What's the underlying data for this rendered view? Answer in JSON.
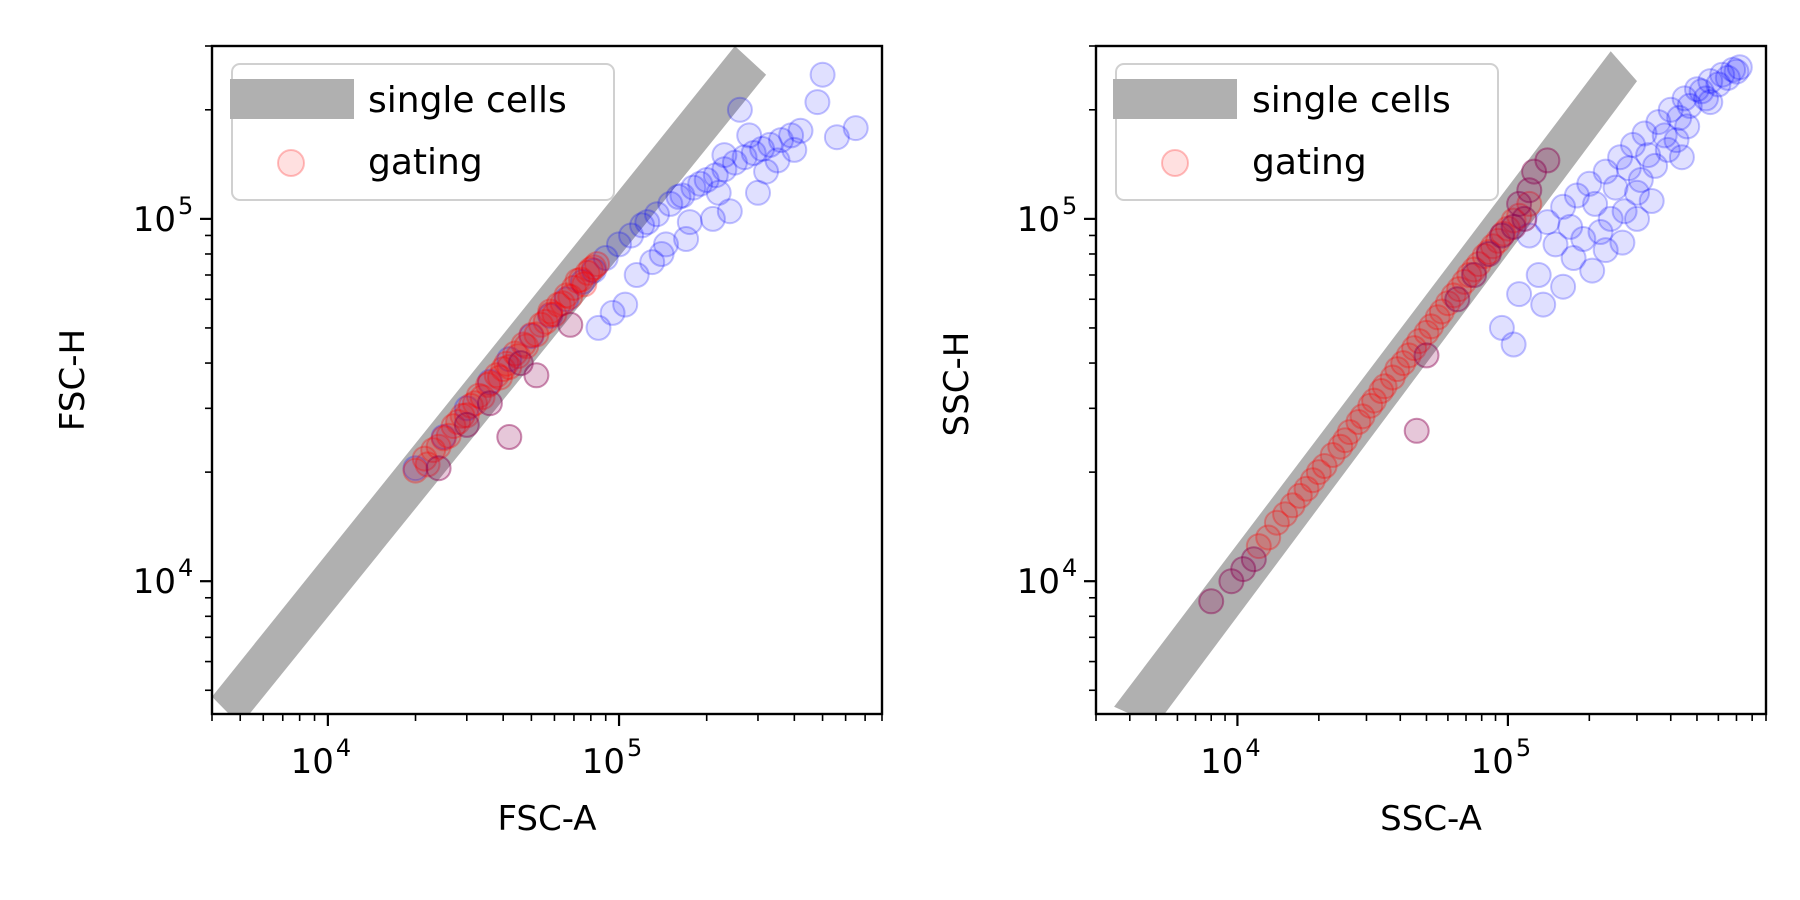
{
  "chart_data": [
    {
      "type": "scatter",
      "xlabel": "FSC-A",
      "ylabel": "FSC-H",
      "xscale": "log",
      "yscale": "log",
      "xlim": [
        4000,
        800000
      ],
      "ylim": [
        4300,
        300000
      ],
      "x_ticks": [
        {
          "base": "10",
          "exp": "4",
          "value": 10000
        },
        {
          "base": "10",
          "exp": "5",
          "value": 100000
        }
      ],
      "y_ticks": [
        {
          "base": "10",
          "exp": "4",
          "value": 10000
        },
        {
          "base": "10",
          "exp": "5",
          "value": 100000
        }
      ],
      "grid": false,
      "legend_position": "top-left",
      "legend": [
        {
          "label": "single cells",
          "marker": "band",
          "color": "#b0b0b0"
        },
        {
          "label": "gating",
          "marker": "circle",
          "color": "#ff0000"
        }
      ],
      "gate_band": {
        "name": "single cells",
        "lower": [
          [
            5000,
            4000
          ],
          [
            320000,
            250000
          ]
        ],
        "upper": [
          [
            4000,
            4800
          ],
          [
            250000,
            300000
          ]
        ],
        "color": "#b0b0b0"
      },
      "series": [
        {
          "name": "gating",
          "role": "all events",
          "color": "#0000ff",
          "alpha": 0.12,
          "x": [
            20000,
            25000,
            30000,
            36000,
            42000,
            50000,
            58000,
            66000,
            75000,
            82000,
            90000,
            100000,
            110000,
            120000,
            135000,
            150000,
            165000,
            180000,
            200000,
            215000,
            230000,
            250000,
            270000,
            290000,
            310000,
            330000,
            360000,
            390000,
            420000,
            500000,
            650000,
            560000,
            480000,
            140000,
            170000,
            210000,
            240000,
            300000,
            260000,
            115000,
            125000,
            160000,
            190000,
            280000,
            350000,
            220000,
            105000,
            95000,
            130000,
            320000,
            400000,
            230000,
            175000,
            145000,
            85000
          ],
          "y": [
            20500,
            25000,
            30000,
            35500,
            41000,
            47500,
            54000,
            60000,
            67000,
            72000,
            78000,
            85000,
            90000,
            96000,
            103000,
            110000,
            116000,
            122000,
            128000,
            132000,
            137000,
            143000,
            148000,
            152000,
            156000,
            160000,
            165000,
            170000,
            175000,
            250000,
            178000,
            168000,
            210000,
            80000,
            88000,
            100000,
            105000,
            118000,
            200000,
            70000,
            98000,
            115000,
            125000,
            170000,
            145000,
            118000,
            58000,
            55000,
            76000,
            135000,
            155000,
            150000,
            98000,
            85000,
            50000
          ]
        },
        {
          "name": "gating",
          "role": "gated single cells",
          "color": "#ff0000",
          "alpha": 0.15,
          "x": [
            20000,
            21500,
            23000,
            25000,
            27000,
            29000,
            31000,
            33000,
            35500,
            38000,
            41000,
            44000,
            47000,
            50000,
            54000,
            58000,
            62000,
            66000,
            70000,
            74000,
            78000,
            82000,
            84000,
            22000,
            26000,
            30000,
            34000,
            39000,
            45000,
            52000,
            60000,
            68000,
            76000,
            24000,
            42000,
            64000,
            36000,
            48000,
            56000,
            72000,
            32000,
            40000,
            80000,
            28000,
            58000
          ],
          "y": [
            20200,
            21800,
            23000,
            24800,
            26800,
            28600,
            30500,
            32500,
            34800,
            37000,
            39800,
            42500,
            45000,
            47800,
            51000,
            54500,
            58000,
            61500,
            64500,
            68000,
            71000,
            73500,
            75000,
            21000,
            25200,
            28700,
            32200,
            36500,
            41800,
            48000,
            54500,
            61000,
            66000,
            23500,
            39000,
            58500,
            35200,
            44500,
            52000,
            67500,
            31000,
            38500,
            72500,
            27500,
            55500
          ]
        },
        {
          "name": "gating",
          "role": "outliers",
          "color": "#8b0050",
          "alpha": 0.22,
          "x": [
            42000,
            52000,
            68000,
            24000,
            30000,
            36000,
            46000
          ],
          "y": [
            25000,
            37000,
            51000,
            20500,
            27000,
            31000,
            40000
          ]
        }
      ]
    },
    {
      "type": "scatter",
      "xlabel": "SSC-A",
      "ylabel": "SSC-H",
      "xscale": "log",
      "yscale": "log",
      "xlim": [
        3000,
        900000
      ],
      "ylim": [
        4300,
        300000
      ],
      "x_ticks": [
        {
          "base": "10",
          "exp": "4",
          "value": 10000
        },
        {
          "base": "10",
          "exp": "5",
          "value": 100000
        }
      ],
      "y_ticks": [
        {
          "base": "10",
          "exp": "4",
          "value": 10000
        },
        {
          "base": "10",
          "exp": "5",
          "value": 100000
        }
      ],
      "grid": false,
      "legend_position": "top-left",
      "legend": [
        {
          "label": "single cells",
          "marker": "band",
          "color": "#b0b0b0"
        },
        {
          "label": "gating",
          "marker": "circle",
          "color": "#ff0000"
        }
      ],
      "gate_band": {
        "name": "single cells",
        "lower": [
          [
            5000,
            4000
          ],
          [
            300000,
            240000
          ]
        ],
        "upper": [
          [
            3500,
            4500
          ],
          [
            240000,
            290000
          ]
        ],
        "color": "#b0b0b0"
      },
      "series": [
        {
          "name": "gating",
          "role": "all events",
          "color": "#0000ff",
          "alpha": 0.12,
          "x": [
            120000,
            140000,
            160000,
            180000,
            200000,
            230000,
            260000,
            290000,
            320000,
            360000,
            400000,
            450000,
            500000,
            560000,
            620000,
            680000,
            720000,
            150000,
            170000,
            210000,
            250000,
            280000,
            330000,
            380000,
            430000,
            470000,
            520000,
            130000,
            190000,
            240000,
            300000,
            350000,
            420000,
            560000,
            650000,
            110000,
            175000,
            220000,
            270000,
            310000,
            390000,
            460000,
            540000,
            600000,
            700000,
            135000,
            205000,
            265000,
            340000,
            440000,
            95000,
            105000,
            160000,
            230000,
            300000
          ],
          "y": [
            90000,
            98000,
            108000,
            116000,
            125000,
            135000,
            148000,
            160000,
            172000,
            185000,
            200000,
            215000,
            228000,
            240000,
            250000,
            258000,
            262000,
            85000,
            95000,
            110000,
            122000,
            138000,
            150000,
            170000,
            190000,
            205000,
            225000,
            70000,
            88000,
            100000,
            118000,
            140000,
            165000,
            210000,
            245000,
            62000,
            78000,
            92000,
            105000,
            128000,
            155000,
            180000,
            215000,
            235000,
            255000,
            58000,
            72000,
            86000,
            112000,
            148000,
            50000,
            45000,
            65000,
            82000,
            100000
          ]
        },
        {
          "name": "gating",
          "role": "gated single cells",
          "color": "#ff0000",
          "alpha": 0.15,
          "x": [
            12000,
            14000,
            16000,
            18000,
            20000,
            22500,
            25000,
            28000,
            31000,
            34000,
            37500,
            41000,
            45000,
            50000,
            55000,
            60000,
            66000,
            72000,
            78000,
            85000,
            92000,
            100000,
            110000,
            120000,
            13000,
            17000,
            21000,
            26000,
            32000,
            39000,
            47000,
            57000,
            69000,
            82000,
            96000,
            24000,
            35000,
            52000,
            75000,
            105000,
            15000,
            19000,
            29000,
            43000,
            63000,
            88000
          ],
          "y": [
            12500,
            14500,
            16200,
            18000,
            20000,
            22300,
            24500,
            27500,
            30500,
            33500,
            36500,
            40000,
            44000,
            48500,
            53500,
            58500,
            64000,
            70000,
            75000,
            81000,
            87000,
            94000,
            102000,
            110000,
            13200,
            17200,
            20800,
            25800,
            31500,
            38500,
            46000,
            55500,
            67000,
            79000,
            91000,
            23500,
            34500,
            50500,
            72500,
            99000,
            15300,
            19000,
            28500,
            42000,
            61500,
            84000
          ]
        },
        {
          "name": "gating",
          "role": "outliers",
          "color": "#8b0050",
          "alpha": 0.22,
          "x": [
            8000,
            9500,
            10500,
            11500,
            46000,
            65000,
            75000,
            85000,
            95000,
            110000,
            120000,
            105000,
            140000,
            125000,
            115000,
            50000
          ],
          "y": [
            8800,
            10000,
            10800,
            11500,
            26000,
            60000,
            70000,
            80000,
            90000,
            110000,
            120000,
            95000,
            145000,
            135000,
            100000,
            42000
          ]
        }
      ]
    }
  ]
}
